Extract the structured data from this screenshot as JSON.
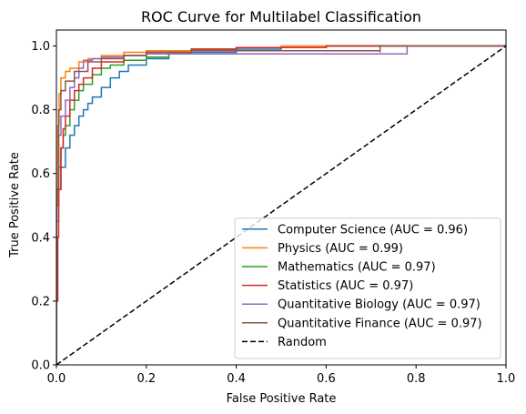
{
  "chart_data": {
    "type": "line",
    "title": "ROC Curve for Multilabel Classification",
    "xlabel": "False Positive Rate",
    "ylabel": "True Positive Rate",
    "xlim": [
      0.0,
      1.0
    ],
    "ylim": [
      0.0,
      1.05
    ],
    "xticks": [
      "0.0",
      "0.2",
      "0.4",
      "0.6",
      "0.8",
      "1.0"
    ],
    "yticks": [
      "0.0",
      "0.2",
      "0.4",
      "0.6",
      "0.8",
      "1.0"
    ],
    "grid": false,
    "legend_position": "lower-right",
    "series": [
      {
        "name": "Computer Science (AUC = 0.96)",
        "color": "#1f77b4",
        "x": [
          0.0,
          0.0,
          0.005,
          0.01,
          0.02,
          0.03,
          0.04,
          0.05,
          0.06,
          0.07,
          0.08,
          0.1,
          0.12,
          0.14,
          0.16,
          0.2,
          0.25,
          0.3,
          0.4,
          0.5,
          0.6,
          0.8,
          1.0
        ],
        "y": [
          0.0,
          0.45,
          0.55,
          0.62,
          0.68,
          0.72,
          0.75,
          0.78,
          0.8,
          0.82,
          0.84,
          0.87,
          0.9,
          0.92,
          0.94,
          0.96,
          0.975,
          0.98,
          0.99,
          0.995,
          1.0,
          1.0,
          1.0
        ]
      },
      {
        "name": "Physics (AUC = 0.99)",
        "color": "#ff7f0e",
        "x": [
          0.0,
          0.0,
          0.003,
          0.006,
          0.01,
          0.02,
          0.03,
          0.05,
          0.07,
          0.1,
          0.15,
          0.2,
          0.3,
          0.4,
          0.5,
          1.0
        ],
        "y": [
          0.0,
          0.5,
          0.75,
          0.85,
          0.9,
          0.92,
          0.93,
          0.95,
          0.96,
          0.97,
          0.98,
          0.985,
          0.99,
          0.995,
          1.0,
          1.0
        ]
      },
      {
        "name": "Mathematics (AUC = 0.97)",
        "color": "#2ca02c",
        "x": [
          0.0,
          0.0,
          0.005,
          0.01,
          0.015,
          0.02,
          0.03,
          0.04,
          0.05,
          0.06,
          0.08,
          0.1,
          0.12,
          0.15,
          0.2,
          0.25,
          0.3,
          0.4,
          0.5,
          0.6,
          0.8,
          1.0
        ],
        "y": [
          0.0,
          0.5,
          0.62,
          0.68,
          0.72,
          0.75,
          0.8,
          0.83,
          0.86,
          0.88,
          0.91,
          0.93,
          0.94,
          0.955,
          0.965,
          0.98,
          0.99,
          0.995,
          0.995,
          1.0,
          1.0,
          1.0
        ]
      },
      {
        "name": "Statistics (AUC = 0.97)",
        "color": "#d62728",
        "x": [
          0.0,
          0.0,
          0.003,
          0.005,
          0.01,
          0.015,
          0.02,
          0.03,
          0.04,
          0.05,
          0.06,
          0.08,
          0.1,
          0.15,
          0.2,
          0.3,
          0.4,
          0.6,
          0.8,
          1.0
        ],
        "y": [
          0.0,
          0.2,
          0.4,
          0.55,
          0.68,
          0.74,
          0.78,
          0.83,
          0.86,
          0.88,
          0.9,
          0.93,
          0.95,
          0.97,
          0.98,
          0.99,
          0.995,
          1.0,
          1.0,
          1.0
        ]
      },
      {
        "name": "Quantitative Biology (AUC = 0.97)",
        "color": "#9467bd",
        "x": [
          0.0,
          0.0,
          0.005,
          0.01,
          0.02,
          0.03,
          0.04,
          0.05,
          0.06,
          0.08,
          0.1,
          0.15,
          0.2,
          0.3,
          0.47,
          0.78,
          0.78,
          1.0
        ],
        "y": [
          0.0,
          0.55,
          0.72,
          0.78,
          0.83,
          0.87,
          0.9,
          0.93,
          0.955,
          0.96,
          0.965,
          0.97,
          0.975,
          0.975,
          0.975,
          0.995,
          1.0,
          1.0
        ]
      },
      {
        "name": "Quantitative Finance (AUC = 0.97)",
        "color": "#8c564b",
        "x": [
          0.0,
          0.0,
          0.005,
          0.01,
          0.02,
          0.03,
          0.04,
          0.05,
          0.07,
          0.1,
          0.15,
          0.2,
          0.3,
          0.5,
          0.6,
          0.72,
          0.72,
          1.0
        ],
        "y": [
          0.0,
          0.55,
          0.8,
          0.86,
          0.89,
          0.89,
          0.92,
          0.92,
          0.95,
          0.96,
          0.97,
          0.98,
          0.985,
          0.985,
          0.985,
          0.98,
          1.0,
          1.0
        ]
      },
      {
        "name": "Random",
        "color": "#000000",
        "dashed": true,
        "x": [
          0.0,
          1.0
        ],
        "y": [
          0.0,
          1.0
        ]
      }
    ]
  }
}
